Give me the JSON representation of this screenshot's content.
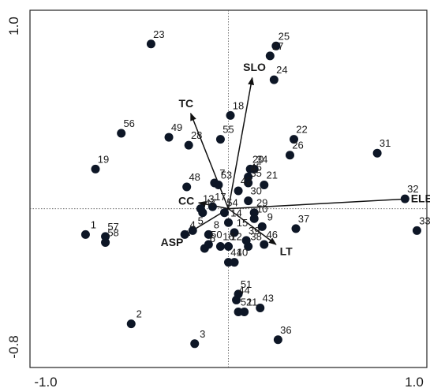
{
  "chart_data": {
    "type": "scatter",
    "title": "",
    "xlabel": "",
    "ylabel": "",
    "xlim": [
      -1.0,
      1.0
    ],
    "ylim": [
      -0.8,
      1.0
    ],
    "grid": false,
    "origin_lines": "dotted",
    "x_tick_labels": [
      {
        "value": -1.0,
        "text": "-1.0"
      },
      {
        "value": 1.0,
        "text": "1.0"
      }
    ],
    "y_tick_labels": [
      {
        "value": 1.0,
        "text": "1.0"
      },
      {
        "value": -0.8,
        "text": "-0.8"
      }
    ],
    "point_color": "#0d1626",
    "points": [
      {
        "label": "1",
        "x": -0.72,
        "y": -0.13
      },
      {
        "label": "2",
        "x": -0.49,
        "y": -0.58
      },
      {
        "label": "3",
        "x": -0.17,
        "y": -0.68
      },
      {
        "label": "4",
        "x": -0.22,
        "y": -0.13
      },
      {
        "label": "5",
        "x": -0.18,
        "y": -0.11
      },
      {
        "label": "6",
        "x": -0.12,
        "y": -0.2
      },
      {
        "label": "7",
        "x": -0.07,
        "y": 0.13
      },
      {
        "label": "8",
        "x": -0.1,
        "y": -0.13
      },
      {
        "label": "9",
        "x": 0.17,
        "y": -0.09
      },
      {
        "label": "10",
        "x": 0.13,
        "y": -0.05
      },
      {
        "label": "11",
        "x": 0.08,
        "y": -0.52
      },
      {
        "label": "12",
        "x": 0.0,
        "y": -0.19
      },
      {
        "label": "13",
        "x": -0.14,
        "y": 0.0
      },
      {
        "label": "14",
        "x": 0.0,
        "y": -0.07
      },
      {
        "label": "15",
        "x": 0.03,
        "y": -0.12
      },
      {
        "label": "16",
        "x": -0.04,
        "y": -0.19
      },
      {
        "label": "17",
        "x": -0.08,
        "y": 0.01
      },
      {
        "label": "18",
        "x": 0.01,
        "y": 0.47
      },
      {
        "label": "19",
        "x": -0.67,
        "y": 0.2
      },
      {
        "label": "20",
        "x": 0.11,
        "y": 0.2
      },
      {
        "label": "21",
        "x": 0.18,
        "y": 0.12
      },
      {
        "label": "22",
        "x": 0.33,
        "y": 0.35
      },
      {
        "label": "23",
        "x": -0.39,
        "y": 0.83
      },
      {
        "label": "24",
        "x": 0.23,
        "y": 0.65
      },
      {
        "label": "25",
        "x": 0.24,
        "y": 0.82
      },
      {
        "label": "26",
        "x": 0.31,
        "y": 0.27
      },
      {
        "label": "27",
        "x": 0.21,
        "y": 0.77
      },
      {
        "label": "28",
        "x": -0.2,
        "y": 0.32
      },
      {
        "label": "29",
        "x": 0.13,
        "y": -0.02
      },
      {
        "label": "30",
        "x": 0.1,
        "y": 0.04
      },
      {
        "label": "31",
        "x": 0.75,
        "y": 0.28
      },
      {
        "label": "32",
        "x": 0.89,
        "y": 0.05
      },
      {
        "label": "33",
        "x": 0.95,
        "y": -0.11
      },
      {
        "label": "34",
        "x": 0.13,
        "y": 0.2
      },
      {
        "label": "35",
        "x": 0.1,
        "y": 0.13
      },
      {
        "label": "36",
        "x": 0.25,
        "y": -0.66
      },
      {
        "label": "37",
        "x": 0.34,
        "y": -0.1
      },
      {
        "label": "38",
        "x": 0.1,
        "y": -0.19
      },
      {
        "label": "39",
        "x": 0.09,
        "y": -0.16
      },
      {
        "label": "40",
        "x": 0.03,
        "y": -0.27
      },
      {
        "label": "41",
        "x": 0.0,
        "y": -0.27
      },
      {
        "label": "42",
        "x": 0.05,
        "y": 0.09
      },
      {
        "label": "43",
        "x": 0.16,
        "y": -0.5
      },
      {
        "label": "44",
        "x": 0.04,
        "y": -0.46
      },
      {
        "label": "45",
        "x": 0.1,
        "y": 0.16
      },
      {
        "label": "46",
        "x": 0.18,
        "y": -0.18
      },
      {
        "label": "47",
        "x": -0.13,
        "y": -0.02
      },
      {
        "label": "48",
        "x": -0.21,
        "y": 0.11
      },
      {
        "label": "49",
        "x": -0.3,
        "y": 0.36
      },
      {
        "label": "50",
        "x": -0.1,
        "y": -0.18
      },
      {
        "label": "51",
        "x": 0.05,
        "y": -0.43
      },
      {
        "label": "52",
        "x": 0.05,
        "y": -0.52
      },
      {
        "label": "53",
        "x": -0.05,
        "y": 0.12
      },
      {
        "label": "54",
        "x": -0.02,
        "y": -0.02
      },
      {
        "label": "55",
        "x": -0.04,
        "y": 0.35
      },
      {
        "label": "56",
        "x": -0.54,
        "y": 0.38
      },
      {
        "label": "57",
        "x": -0.62,
        "y": -0.14
      },
      {
        "label": "58",
        "x": -0.62,
        "y": -0.17
      }
    ],
    "vectors": [
      {
        "label": "ELE",
        "x": 0.91,
        "y": 0.05
      },
      {
        "label": "SLO",
        "x": 0.12,
        "y": 0.66
      },
      {
        "label": "TC",
        "x": -0.19,
        "y": 0.48
      },
      {
        "label": "CC",
        "x": -0.15,
        "y": 0.03
      },
      {
        "label": "ASP",
        "x": -0.23,
        "y": -0.14
      },
      {
        "label": "LT",
        "x": 0.24,
        "y": -0.18
      }
    ]
  }
}
